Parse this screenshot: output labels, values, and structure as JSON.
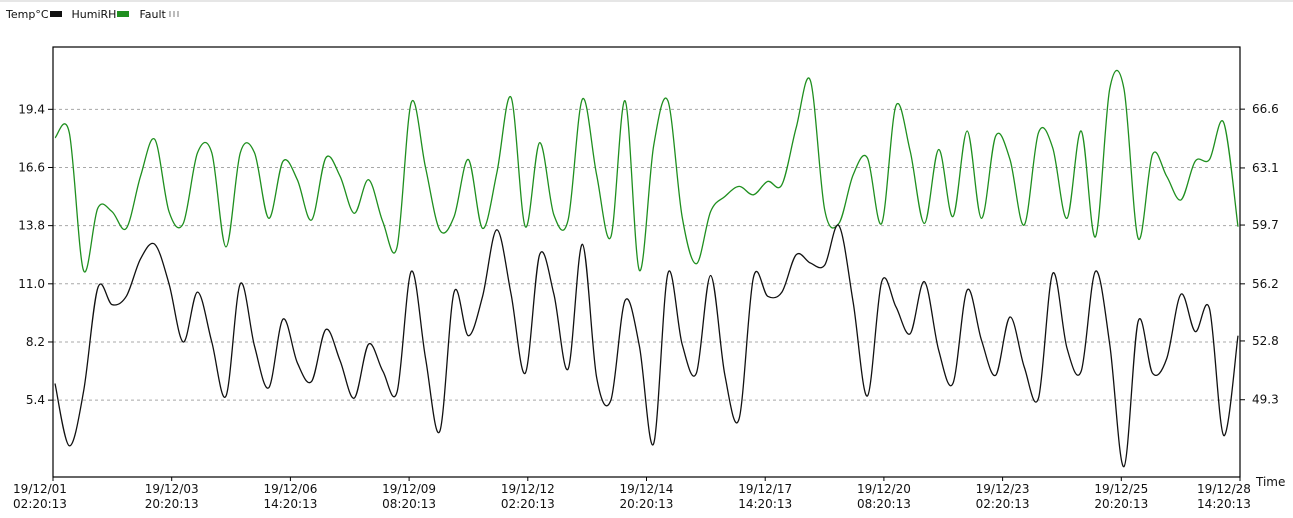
{
  "legend": {
    "temp_label": "Temp°C",
    "humi_label": "HumiRH",
    "fault_label": "Fault"
  },
  "colors": {
    "temp": "#111111",
    "humi": "#1f8f1f",
    "grid": "#a8a8a8",
    "frame": "#000000"
  },
  "chart_data": {
    "type": "line",
    "x_axis_label": "Time",
    "x_tick_labels": [
      [
        "19/12/01",
        "02:20:13"
      ],
      [
        "19/12/03",
        "20:20:13"
      ],
      [
        "19/12/06",
        "14:20:13"
      ],
      [
        "19/12/09",
        "08:20:13"
      ],
      [
        "19/12/12",
        "02:20:13"
      ],
      [
        "19/12/14",
        "20:20:13"
      ],
      [
        "19/12/17",
        "14:20:13"
      ],
      [
        "19/12/20",
        "08:20:13"
      ],
      [
        "19/12/23",
        "02:20:13"
      ],
      [
        "19/12/25",
        "20:20:13"
      ],
      [
        "19/12/28",
        "14:20:13"
      ]
    ],
    "left_axis": {
      "ticks": [
        "5.4",
        "8.2",
        "11.0",
        "13.8",
        "16.6",
        "19.4"
      ],
      "range": [
        1.7,
        22.4
      ]
    },
    "right_axis": {
      "ticks": [
        "49.3",
        "52.8",
        "56.2",
        "59.7",
        "63.1",
        "66.6"
      ],
      "range": [
        44.7,
        70.3
      ]
    },
    "grid": true,
    "series": [
      {
        "name": "Temp°C",
        "axis": "left",
        "values": [
          6.2,
          3.2,
          5.8,
          10.8,
          10.0,
          10.4,
          12.2,
          12.9,
          11.0,
          8.2,
          10.6,
          8.2,
          5.6,
          11.0,
          8.0,
          6.0,
          9.3,
          7.2,
          6.3,
          8.8,
          7.3,
          5.5,
          8.1,
          6.8,
          5.8,
          11.6,
          7.4,
          3.9,
          10.6,
          8.5,
          10.4,
          13.6,
          10.5,
          6.7,
          12.4,
          10.5,
          6.9,
          12.9,
          6.5,
          5.4,
          10.2,
          8.0,
          3.3,
          11.5,
          8.1,
          6.7,
          11.4,
          6.6,
          4.5,
          11.3,
          10.4,
          10.6,
          12.4,
          12.0,
          11.9,
          13.8,
          10.1,
          5.6,
          11.1,
          9.9,
          8.6,
          11.1,
          7.8,
          6.2,
          10.7,
          8.3,
          6.6,
          9.4,
          7.0,
          5.5,
          11.5,
          7.9,
          6.8,
          11.6,
          8.1,
          2.2,
          9.2,
          6.7,
          7.4,
          10.5,
          8.7,
          9.8,
          3.7,
          8.5
        ]
      },
      {
        "name": "HumiRH",
        "axis": "right",
        "values": [
          64.9,
          65.2,
          57.0,
          60.7,
          60.5,
          59.5,
          62.6,
          64.8,
          60.5,
          59.8,
          64.0,
          64.0,
          58.4,
          64.0,
          64.0,
          60.1,
          63.5,
          62.4,
          60.0,
          63.7,
          62.6,
          60.4,
          62.4,
          59.9,
          58.4,
          67.0,
          63.1,
          59.4,
          60.2,
          63.6,
          59.5,
          62.8,
          67.3,
          59.6,
          64.6,
          60.3,
          60.0,
          67.2,
          62.7,
          59.0,
          67.1,
          57.0,
          64.4,
          67.1,
          60.2,
          57.4,
          60.5,
          61.4,
          62.0,
          61.5,
          62.3,
          62.1,
          65.5,
          68.3,
          60.6,
          59.8,
          62.7,
          63.7,
          59.8,
          66.8,
          64.1,
          59.8,
          64.2,
          60.2,
          65.3,
          60.1,
          65.0,
          63.6,
          59.7,
          65.2,
          64.3,
          60.1,
          65.3,
          59.0,
          67.8,
          67.8,
          58.9,
          63.9,
          62.6,
          61.2,
          63.5,
          63.6,
          65.8,
          59.6
        ]
      }
    ]
  }
}
